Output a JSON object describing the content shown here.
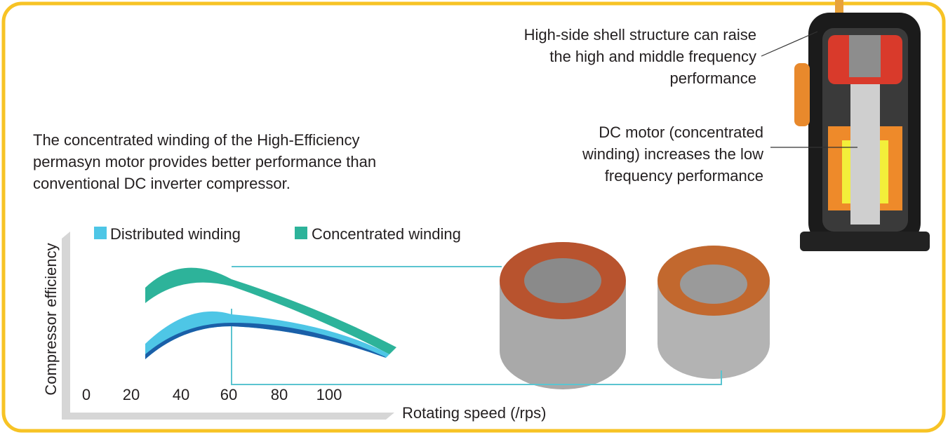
{
  "callouts": [
    {
      "lines": [
        "High-side shell structure can raise",
        "the high and middle frequency",
        "performance"
      ]
    },
    {
      "lines": [
        "DC motor (concentrated",
        "winding) increases the low",
        "frequency performance"
      ]
    }
  ],
  "description": {
    "lines": [
      "The concentrated winding of the High-Efficiency",
      "permasyn motor provides better performance than",
      "conventional DC inverter compressor."
    ]
  },
  "legend": [
    "Distributed winding",
    "Concentrated winding"
  ],
  "y_axis_label": "Compressor efficiency",
  "x_axis_label": "Rotating speed (/rps)",
  "x_ticks": [
    "0",
    "20",
    "40",
    "60",
    "80",
    "100"
  ]
}
